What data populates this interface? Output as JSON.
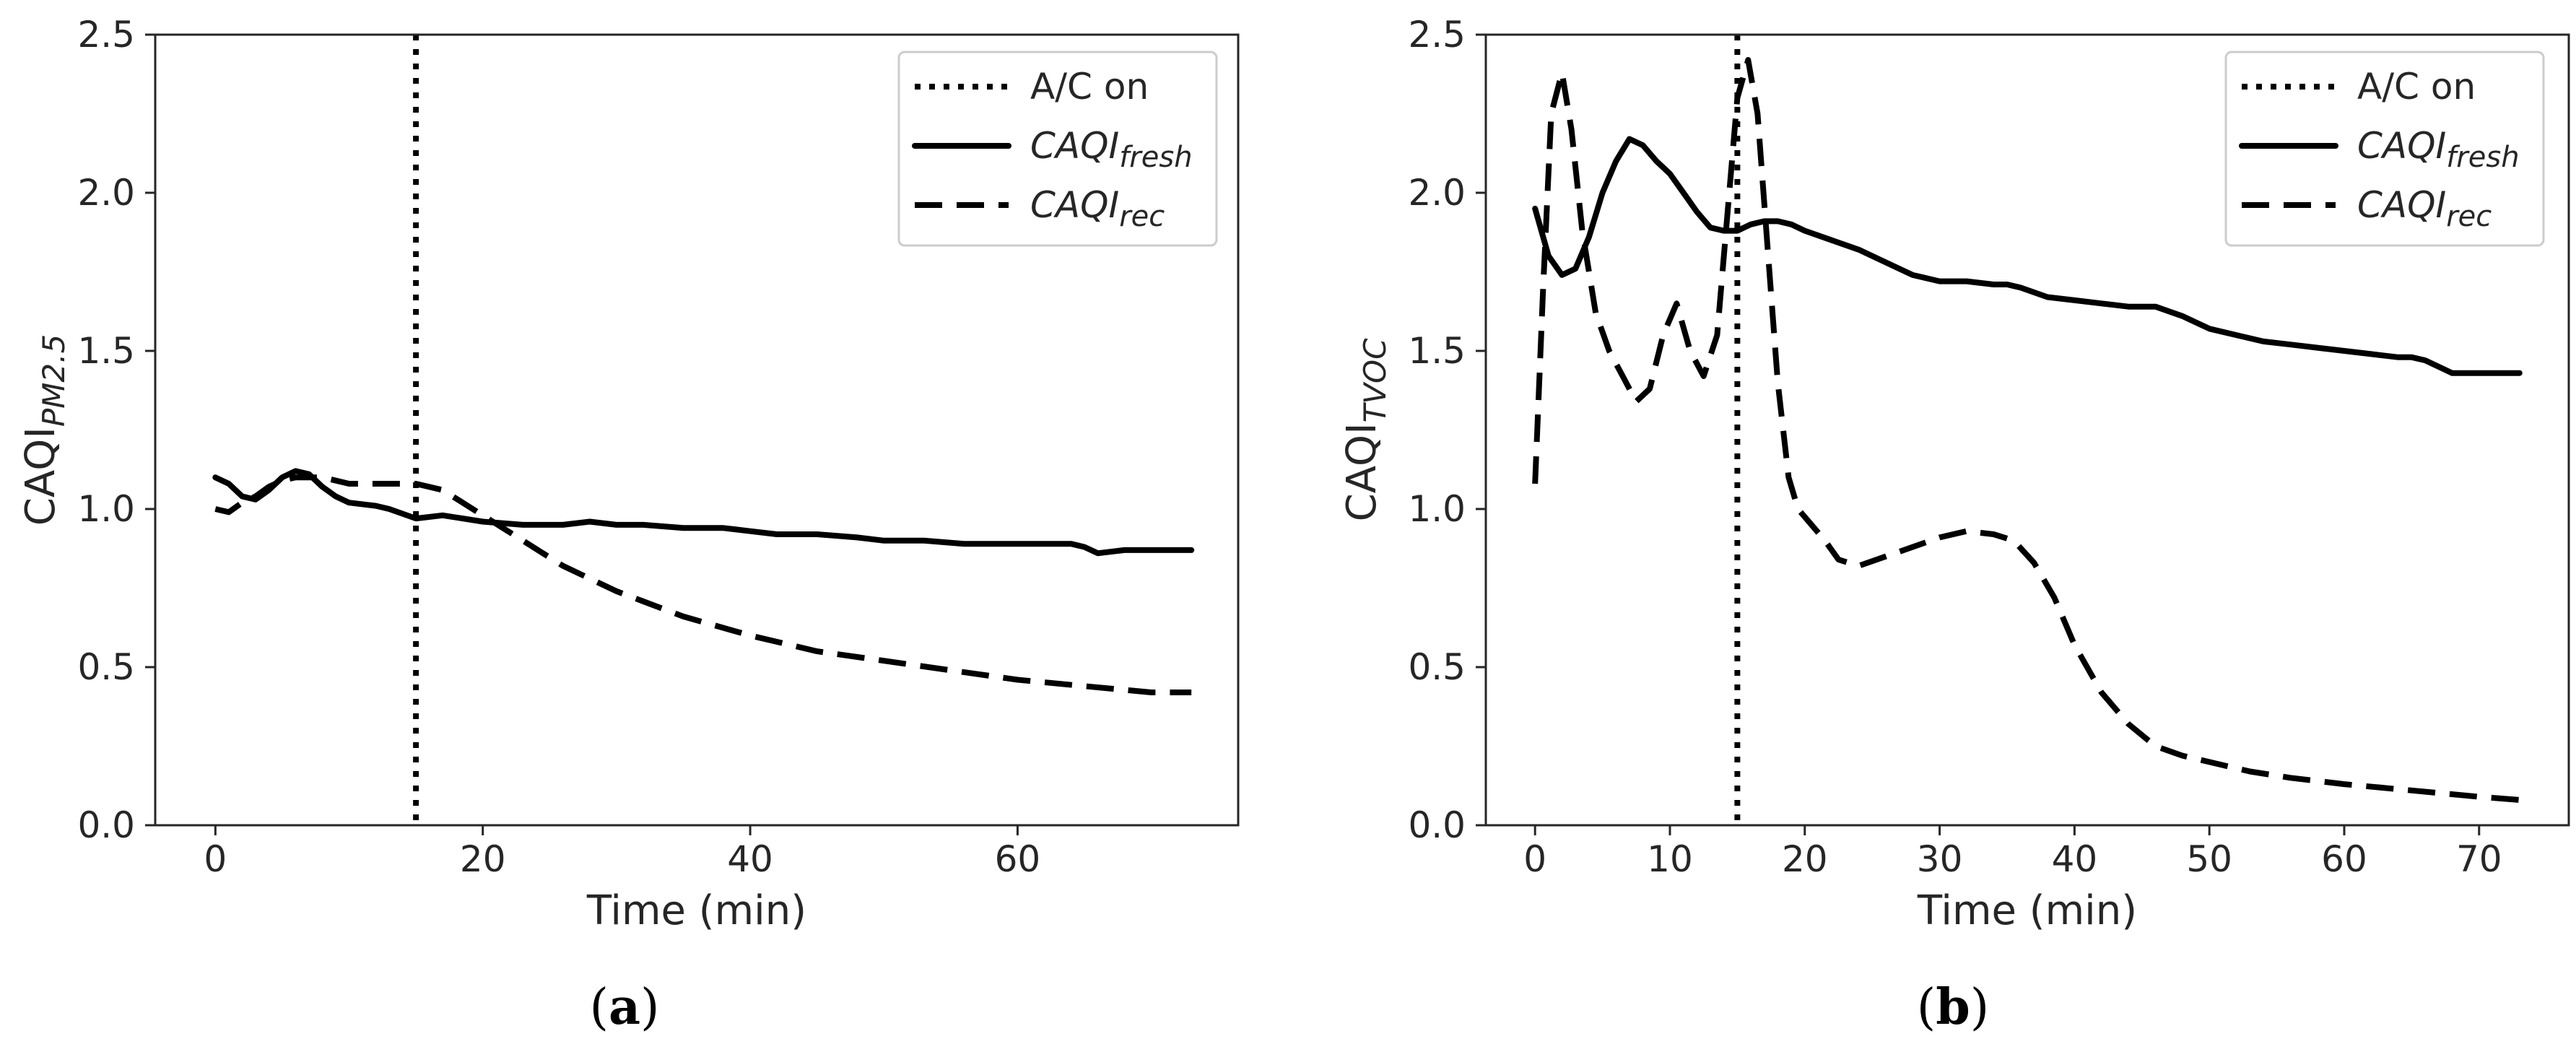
{
  "chart_data": [
    {
      "panel_label": "a",
      "type": "line",
      "xlabel": "Time (min)",
      "ylabel": {
        "base": "CAQI",
        "sub": "PM2.5"
      },
      "xlim": [
        -4.5,
        76.5
      ],
      "ylim": [
        0,
        2.5
      ],
      "xticks": [
        0,
        20,
        40,
        60
      ],
      "yticks": [
        0.0,
        0.5,
        1.0,
        1.5,
        2.0,
        2.5
      ],
      "xtick_labels": [
        "0",
        "20",
        "40",
        "60"
      ],
      "ytick_labels": [
        "0.0",
        "0.5",
        "1.0",
        "1.5",
        "2.0",
        "2.5"
      ],
      "vline": {
        "x": 15,
        "label": "A/C on"
      },
      "legend": {
        "position": "top-right",
        "entries": [
          {
            "label": "A/C on",
            "style": "dotted"
          },
          {
            "label_base": "CAQI",
            "label_sub": "fresh",
            "style": "solid"
          },
          {
            "label_base": "CAQI",
            "label_sub": "rec",
            "style": "dashed"
          }
        ]
      },
      "series": [
        {
          "name": "CAQI_fresh",
          "style": "solid",
          "x": [
            0,
            1,
            2,
            3,
            4,
            5,
            6,
            7,
            8,
            9,
            10,
            12,
            13,
            15,
            17,
            20,
            23,
            26,
            28,
            30,
            32,
            35,
            38,
            40,
            42,
            45,
            48,
            50,
            53,
            56,
            58,
            60,
            62,
            64,
            65,
            66,
            68,
            70,
            72,
            73
          ],
          "y": [
            1.1,
            1.08,
            1.04,
            1.03,
            1.06,
            1.1,
            1.12,
            1.11,
            1.07,
            1.04,
            1.02,
            1.01,
            1.0,
            0.97,
            0.98,
            0.96,
            0.95,
            0.95,
            0.96,
            0.95,
            0.95,
            0.94,
            0.94,
            0.93,
            0.92,
            0.92,
            0.91,
            0.9,
            0.9,
            0.89,
            0.89,
            0.89,
            0.89,
            0.89,
            0.88,
            0.86,
            0.87,
            0.87,
            0.87,
            0.87
          ]
        },
        {
          "name": "CAQI_rec",
          "style": "dashed",
          "x": [
            0,
            1,
            2,
            3,
            4,
            5,
            6,
            7,
            8,
            10,
            12,
            15,
            17,
            20,
            23,
            26,
            30,
            35,
            40,
            45,
            50,
            55,
            60,
            65,
            70,
            73
          ],
          "y": [
            1.0,
            0.99,
            1.02,
            1.04,
            1.07,
            1.09,
            1.1,
            1.1,
            1.1,
            1.08,
            1.08,
            1.08,
            1.06,
            0.98,
            0.9,
            0.82,
            0.74,
            0.66,
            0.6,
            0.55,
            0.52,
            0.49,
            0.46,
            0.44,
            0.42,
            0.42
          ]
        }
      ]
    },
    {
      "panel_label": "b",
      "type": "line",
      "xlabel": "Time (min)",
      "ylabel": {
        "base": "CAQI",
        "sub": "TVOC"
      },
      "xlim": [
        -3.65,
        76.65
      ],
      "ylim": [
        0,
        2.5
      ],
      "xticks": [
        0,
        10,
        20,
        30,
        40,
        50,
        60,
        70
      ],
      "yticks": [
        0.0,
        0.5,
        1.0,
        1.5,
        2.0,
        2.5
      ],
      "xtick_labels": [
        "0",
        "10",
        "20",
        "30",
        "40",
        "50",
        "60",
        "70"
      ],
      "ytick_labels": [
        "0.0",
        "0.5",
        "1.0",
        "1.5",
        "2.0",
        "2.5"
      ],
      "vline": {
        "x": 15,
        "label": "A/C on"
      },
      "legend": {
        "position": "top-right",
        "entries": [
          {
            "label": "A/C on",
            "style": "dotted"
          },
          {
            "label_base": "CAQI",
            "label_sub": "fresh",
            "style": "solid"
          },
          {
            "label_base": "CAQI",
            "label_sub": "rec",
            "style": "dashed"
          }
        ]
      },
      "series": [
        {
          "name": "CAQI_fresh",
          "style": "solid",
          "x": [
            0,
            1,
            2,
            3,
            4,
            5,
            6,
            7,
            8,
            9,
            10,
            11,
            12,
            13,
            14,
            15,
            16,
            17,
            18,
            19,
            20,
            22,
            24,
            26,
            28,
            30,
            32,
            34,
            35,
            36,
            38,
            40,
            42,
            44,
            46,
            48,
            50,
            52,
            54,
            56,
            58,
            60,
            62,
            64,
            65,
            66,
            67,
            68,
            70,
            72,
            73
          ],
          "y": [
            1.95,
            1.8,
            1.74,
            1.76,
            1.86,
            2.0,
            2.1,
            2.17,
            2.15,
            2.1,
            2.06,
            2.0,
            1.94,
            1.89,
            1.88,
            1.88,
            1.9,
            1.91,
            1.91,
            1.9,
            1.88,
            1.85,
            1.82,
            1.78,
            1.74,
            1.72,
            1.72,
            1.71,
            1.71,
            1.7,
            1.67,
            1.66,
            1.65,
            1.64,
            1.64,
            1.61,
            1.57,
            1.55,
            1.53,
            1.52,
            1.51,
            1.5,
            1.49,
            1.48,
            1.48,
            1.47,
            1.45,
            1.43,
            1.43,
            1.43,
            1.43
          ]
        },
        {
          "name": "CAQI_rec",
          "style": "dashed",
          "x": [
            0,
            0.6,
            1.2,
            2,
            2.7,
            3.5,
            4.5,
            5.5,
            6.5,
            7.5,
            8.5,
            9.5,
            10.5,
            11.5,
            12.5,
            13.5,
            14.3,
            15,
            15.8,
            16.5,
            17.2,
            18,
            18.8,
            19.5,
            20.5,
            21.5,
            22.5,
            24,
            26,
            28,
            30,
            32,
            34,
            35.5,
            37,
            38.5,
            40,
            42,
            44,
            46,
            48,
            50,
            53,
            56,
            60,
            65,
            70,
            73
          ],
          "y": [
            1.08,
            1.7,
            2.25,
            2.38,
            2.2,
            1.88,
            1.62,
            1.5,
            1.42,
            1.34,
            1.38,
            1.55,
            1.65,
            1.5,
            1.42,
            1.55,
            1.95,
            2.3,
            2.42,
            2.25,
            1.85,
            1.4,
            1.1,
            1.0,
            0.95,
            0.9,
            0.84,
            0.82,
            0.85,
            0.88,
            0.91,
            0.93,
            0.92,
            0.9,
            0.83,
            0.72,
            0.57,
            0.42,
            0.32,
            0.25,
            0.22,
            0.2,
            0.17,
            0.15,
            0.13,
            0.11,
            0.09,
            0.08
          ]
        }
      ]
    }
  ]
}
